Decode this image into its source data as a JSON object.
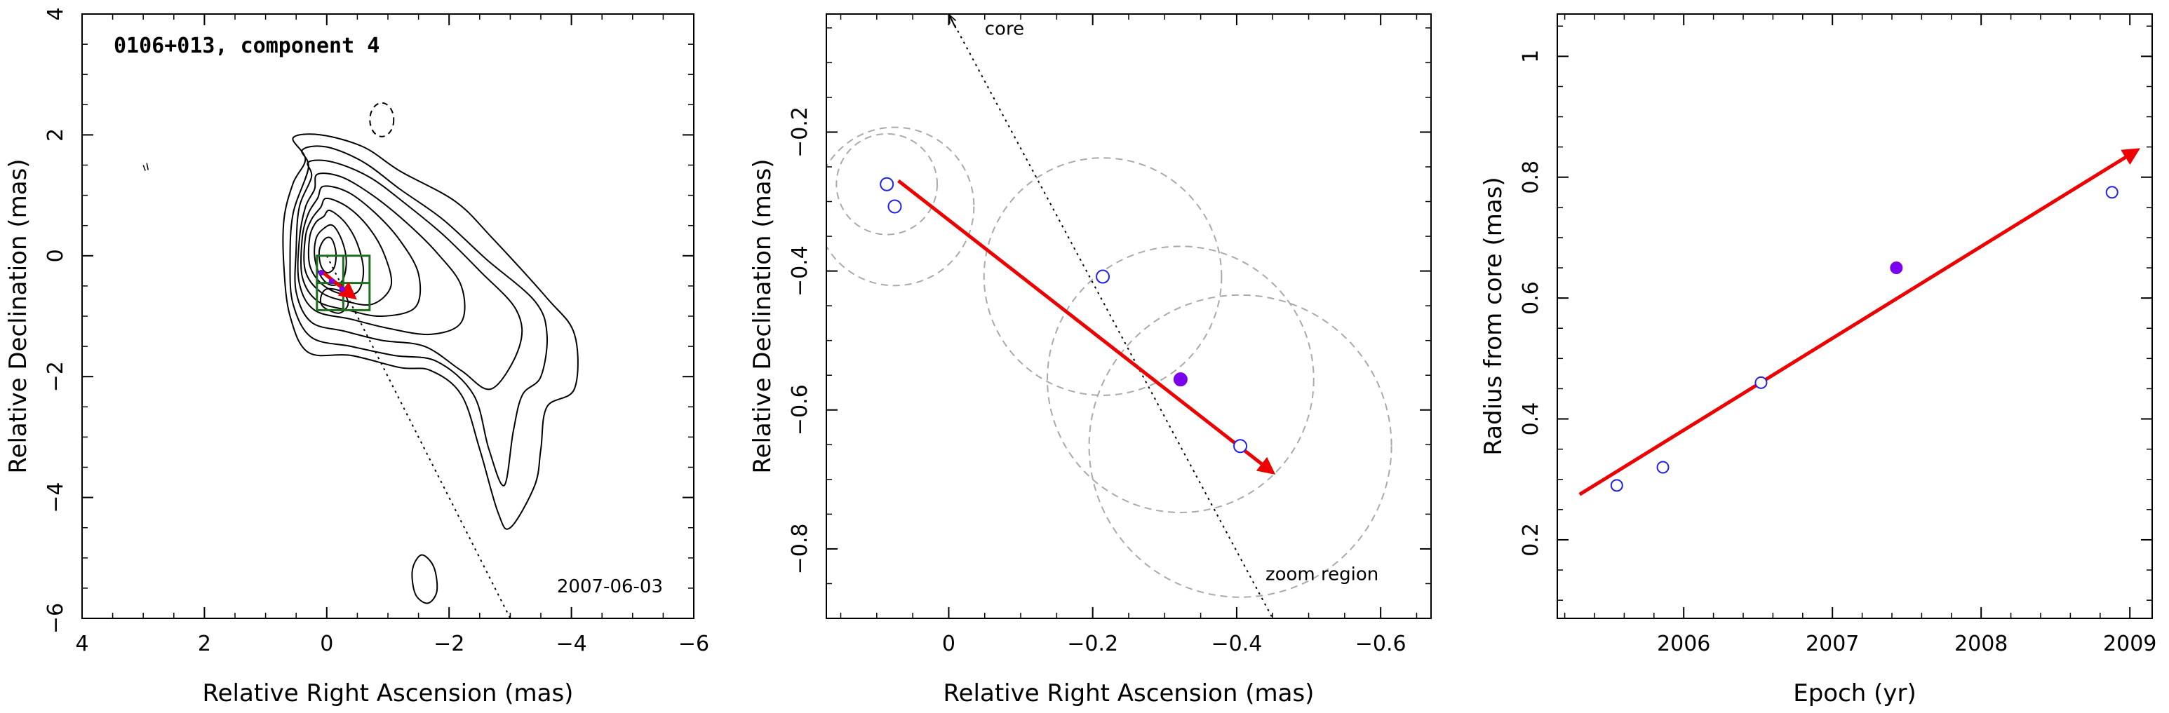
{
  "chart_data": [
    {
      "type": "contour",
      "title": "0106+013, component 4",
      "xlabel": "Relative Right Ascension (mas)",
      "ylabel": "Relative Declination (mas)",
      "xlim": [
        4,
        -6
      ],
      "ylim": [
        -6,
        4
      ],
      "xticks": [
        4,
        2,
        0,
        -2,
        -4,
        -6
      ],
      "yticks": [
        -6,
        -4,
        -2,
        0,
        2,
        4
      ],
      "xticklabels": [
        "4",
        "2",
        "0",
        "−2",
        "−4",
        "−6"
      ],
      "yticklabels": [
        "−6",
        "−4",
        "−2",
        "0",
        "2",
        "4"
      ],
      "annotation": "2007-06-03",
      "zoom_box": {
        "x": [
          0.0,
          -0.7
        ],
        "y": [
          0.0,
          -0.9
        ]
      },
      "arrow": {
        "from": [
          0.07,
          -0.27
        ],
        "to": [
          -0.45,
          -0.69
        ],
        "color": "#ee0000"
      },
      "core_direction_line": {
        "from": [
          0,
          0
        ],
        "to": [
          -3.0,
          -6.0
        ],
        "style": "dotted"
      },
      "colors": {
        "contour": "#000000",
        "box": "#1f6e1f",
        "arrow": "#ee0000"
      }
    },
    {
      "type": "scatter",
      "xlabel": "Relative Right Ascension (mas)",
      "ylabel": "Relative Declination (mas)",
      "xlim": [
        0.17,
        -0.67
      ],
      "ylim": [
        -0.9,
        -0.03
      ],
      "xticks": [
        0,
        -0.2,
        -0.4,
        -0.6
      ],
      "yticks": [
        -0.2,
        -0.4,
        -0.6,
        -0.8
      ],
      "xticklabels": [
        "0",
        "−0.2",
        "−0.4",
        "−0.6"
      ],
      "yticklabels": [
        "−0.2",
        "−0.4",
        "−0.6",
        "−0.8"
      ],
      "points": [
        {
          "x": 0.086,
          "y": -0.275,
          "r": 0.07,
          "filled": false
        },
        {
          "x": 0.075,
          "y": -0.307,
          "r": 0.11,
          "filled": false
        },
        {
          "x": -0.214,
          "y": -0.408,
          "r": 0.165,
          "filled": false
        },
        {
          "x": -0.322,
          "y": -0.556,
          "r": 0.185,
          "filled": true
        },
        {
          "x": -0.405,
          "y": -0.652,
          "r": 0.21,
          "filled": false
        }
      ],
      "arrow": {
        "from": [
          0.07,
          -0.27
        ],
        "to": [
          -0.45,
          -0.69
        ]
      },
      "core_line": {
        "from": [
          0.0,
          -0.03
        ],
        "to": [
          -0.45,
          -0.9
        ]
      },
      "annotations": [
        {
          "text": "core",
          "x": -0.05,
          "y": -0.06
        },
        {
          "text": "zoom region",
          "x": -0.44,
          "y": -0.845
        }
      ],
      "colors": {
        "marker": "#2020ee",
        "filled_marker": "#7a00ee",
        "circle": "#aaaaaa",
        "arrow": "#ee0000"
      }
    },
    {
      "type": "scatter",
      "xlabel": "Epoch (yr)",
      "ylabel": "Radius from core (mas)",
      "xlim": [
        2005.15,
        2009.15
      ],
      "ylim": [
        0.07,
        1.07
      ],
      "xticks": [
        2006,
        2007,
        2008,
        2009
      ],
      "yticks": [
        0.2,
        0.4,
        0.6,
        0.8,
        1
      ],
      "xticklabels": [
        "2006",
        "2007",
        "2008",
        "2009"
      ],
      "yticklabels": [
        "0.2",
        "0.4",
        "0.6",
        "0.8",
        "1"
      ],
      "points": [
        {
          "x": 2005.55,
          "y": 0.29,
          "filled": false
        },
        {
          "x": 2005.86,
          "y": 0.32,
          "filled": false
        },
        {
          "x": 2006.52,
          "y": 0.46,
          "filled": false
        },
        {
          "x": 2007.43,
          "y": 0.65,
          "filled": true
        },
        {
          "x": 2008.88,
          "y": 0.775,
          "filled": false
        }
      ],
      "fit_arrow": {
        "from": [
          2005.3,
          0.275
        ],
        "to": [
          2009.05,
          0.845
        ]
      },
      "colors": {
        "marker": "#2020ee",
        "filled_marker": "#7a00ee",
        "arrow": "#ee0000"
      }
    }
  ]
}
